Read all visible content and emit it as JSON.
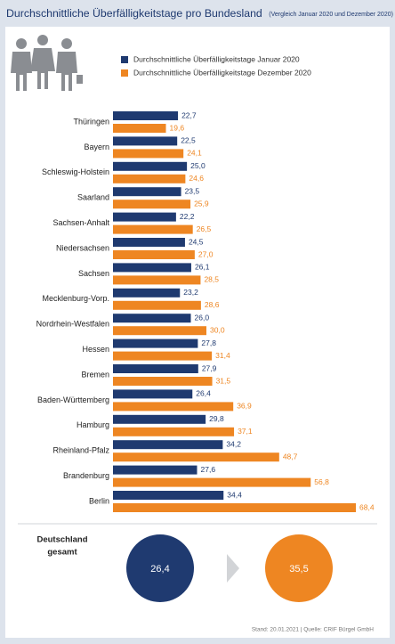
{
  "chart_data": {
    "type": "bar",
    "title": "Durchschnittliche Überfälligkeitstage pro Bundesland",
    "subtitle": "(Vergleich Januar 2020 und Dezember 2020)",
    "orientation": "horizontal",
    "categories": [
      "Thüringen",
      "Bayern",
      "Schleswig-Holstein",
      "Saarland",
      "Sachsen-Anhalt",
      "Niedersachsen",
      "Sachsen",
      "Mecklenburg-Vorp.",
      "Nordrhein-Westfalen",
      "Hessen",
      "Bremen",
      "Baden-Württemberg",
      "Hamburg",
      "Rheinland-Pfalz",
      "Brandenburg",
      "Berlin"
    ],
    "series": [
      {
        "name": "Durchschnittliche Überfälligkeitstage Januar 2020",
        "color": "#1f3a70",
        "values": [
          22.7,
          22.5,
          25.0,
          23.5,
          22.2,
          24.5,
          26.1,
          23.2,
          26.0,
          27.8,
          27.9,
          26.4,
          29.8,
          34.2,
          27.6,
          34.4
        ],
        "value_labels": [
          "22,7",
          "22,5",
          "25,0",
          "23,5",
          "22,2",
          "24,5",
          "26,1",
          "23,2",
          "26,0",
          "27,8",
          "27,9",
          "26,4",
          "29,8",
          "34,2",
          "27,6",
          "34,4"
        ]
      },
      {
        "name": "Durchschnittliche Überfälligkeitstage Dezember 2020",
        "color": "#ee8622",
        "values": [
          19.6,
          24.1,
          24.6,
          25.9,
          26.5,
          27.0,
          28.5,
          28.6,
          30.0,
          31.4,
          31.5,
          36.9,
          37.1,
          48.7,
          56.8,
          68.4
        ],
        "value_labels": [
          "19,6",
          "24,1",
          "24,6",
          "25,9",
          "26,5",
          "27,0",
          "28,5",
          "28,6",
          "30,0",
          "31,4",
          "31,5",
          "36,9",
          "37,1",
          "48,7",
          "56,8",
          "68,4"
        ]
      }
    ],
    "xlim": [
      6,
      70
    ],
    "summary": {
      "label_lines": [
        "Deutschland",
        "gesamt"
      ],
      "values": [
        26.4,
        35.5
      ],
      "value_labels": [
        "26,4",
        "35,5"
      ]
    },
    "source": "Stand: 20.01.2021 | Quelle: CRIF Bürgel GmbH"
  }
}
